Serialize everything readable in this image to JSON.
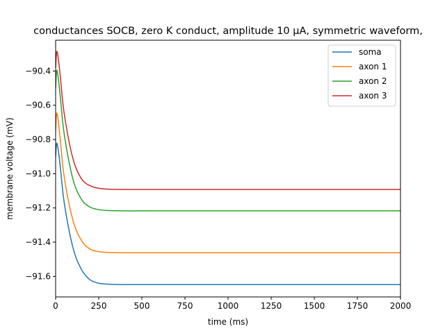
{
  "chart_data": {
    "type": "line",
    "title": "conductances SOCB, zero K conduct, amplitude 10 μA, symmetric waveform,",
    "xlabel": "time (ms)",
    "ylabel": "membrane voltage (mV)",
    "xlim": [
      0,
      2000
    ],
    "ylim": [
      -91.72,
      -90.22
    ],
    "x_ticks": [
      0,
      250,
      500,
      750,
      1000,
      1250,
      1500,
      1750,
      2000
    ],
    "y_ticks": [
      -91.6,
      -91.4,
      -91.2,
      -91.0,
      -90.8,
      -90.6,
      -90.4
    ],
    "y_tick_labels": [
      "−91.6",
      "−91.4",
      "−91.2",
      "−91.0",
      "−90.8",
      "−90.6",
      "−90.4"
    ],
    "grid": false,
    "legend_position": "upper right",
    "series": [
      {
        "name": "soma",
        "color": "#1f77b4",
        "x": [
          0,
          8,
          25,
          50,
          100,
          150,
          200,
          250,
          300,
          400,
          500,
          750,
          1000,
          1500,
          2000
        ],
        "y": [
          -90.9,
          -90.822,
          -90.94,
          -91.17,
          -91.43,
          -91.56,
          -91.62,
          -91.64,
          -91.645,
          -91.648,
          -91.648,
          -91.648,
          -91.648,
          -91.648,
          -91.648
        ]
      },
      {
        "name": "axon 1",
        "color": "#ff7f0e",
        "x": [
          0,
          8,
          25,
          50,
          100,
          150,
          200,
          250,
          300,
          400,
          500,
          750,
          1000,
          1500,
          2000
        ],
        "y": [
          -90.75,
          -90.645,
          -90.78,
          -91.02,
          -91.27,
          -91.39,
          -91.44,
          -91.455,
          -91.46,
          -91.462,
          -91.462,
          -91.462,
          -91.462,
          -91.462,
          -91.462
        ]
      },
      {
        "name": "axon 2",
        "color": "#2ca02c",
        "x": [
          0,
          8,
          25,
          50,
          100,
          150,
          200,
          250,
          300,
          400,
          500,
          750,
          1000,
          1500,
          2000
        ],
        "y": [
          -90.5,
          -90.395,
          -90.53,
          -90.77,
          -91.03,
          -91.15,
          -91.195,
          -91.21,
          -91.215,
          -91.217,
          -91.217,
          -91.217,
          -91.217,
          -91.217,
          -91.217
        ]
      },
      {
        "name": "axon 3",
        "color": "#d62728",
        "x": [
          0,
          8,
          25,
          50,
          100,
          150,
          200,
          250,
          300,
          400,
          500,
          750,
          1000,
          1500,
          2000
        ],
        "y": [
          -90.38,
          -90.285,
          -90.41,
          -90.65,
          -90.91,
          -91.03,
          -91.07,
          -91.085,
          -91.09,
          -91.092,
          -91.092,
          -91.092,
          -91.092,
          -91.092,
          -91.092
        ]
      }
    ]
  }
}
